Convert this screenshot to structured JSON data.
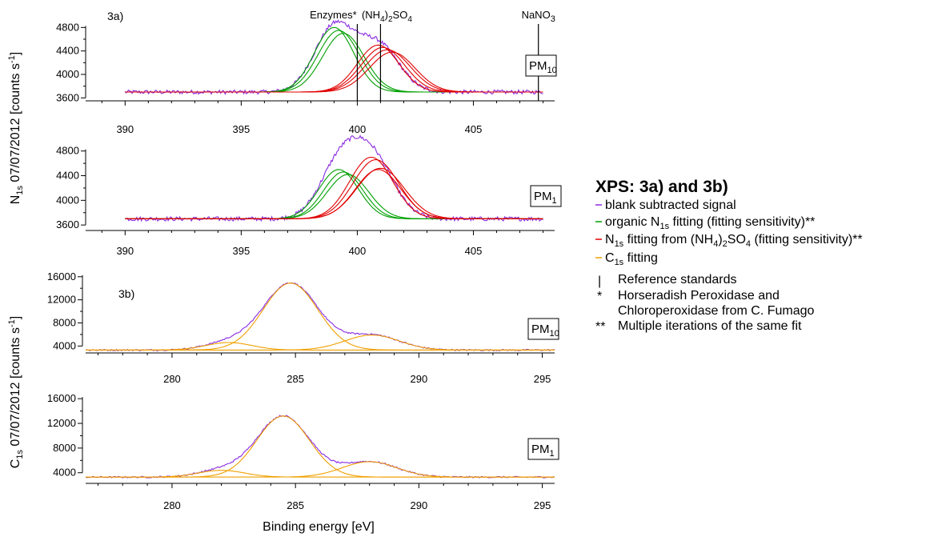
{
  "colors": {
    "signal": "#8a2be2",
    "organic": "#00a000",
    "sulfate": "#e00000",
    "c1s": "#f0a000",
    "axis": "#000000"
  },
  "figure": {
    "ylabel_top": "N1s 07/07/2012 [counts s-1]",
    "ylabel_bottom": "C1s 07/07/2012 [counts s-1]",
    "xlabel": "Binding energy [eV]"
  },
  "legend": {
    "title": "XPS: 3a) and 3b)",
    "items": [
      {
        "key": "signal",
        "marker": "line",
        "text": "blank subtracted signal"
      },
      {
        "key": "organic",
        "marker": "line",
        "text": "organic N1s fitting (fitting sensitivity)**"
      },
      {
        "key": "sulfate",
        "marker": "line",
        "text": "N1s fitting from (NH4)2SO4 (fitting sensitivity)**"
      },
      {
        "key": "c1s",
        "marker": "line",
        "text": "C1s fitting"
      },
      {
        "key": "axis",
        "marker": "|",
        "text": "Reference standards"
      },
      {
        "key": "axis",
        "marker": "*",
        "text": "Horseradish Peroxidase and"
      },
      {
        "key": "axis",
        "marker": "",
        "text": "Chloroperoxidase from C. Fumago"
      },
      {
        "key": "axis",
        "marker": "**",
        "text": "Multiple iterations of the same fit"
      }
    ]
  },
  "chart_data": [
    {
      "type": "line",
      "panel_label": "3a)",
      "box_label": "PM10",
      "xlim": [
        388.3,
        408.5
      ],
      "ylim": [
        3550,
        4900
      ],
      "xticks": [
        390,
        395,
        400,
        405
      ],
      "yticks": [
        3600,
        4000,
        4400,
        4800
      ],
      "reference_lines": [
        {
          "x": 400.0,
          "label": "Enzymes*"
        },
        {
          "x": 401.0,
          "label": "(NH4)2SO4"
        },
        {
          "x": 407.8,
          "label": "NaNO3"
        }
      ],
      "baseline": 3700,
      "signal": {
        "name": "blank subtracted signal",
        "x_range": [
          390,
          408
        ],
        "points": 360,
        "noise": 35
      },
      "fits": {
        "organic": [
          {
            "center": 399.0,
            "amplitude": 1100,
            "fwhm": 2.0
          },
          {
            "center": 399.2,
            "amplitude": 1050,
            "fwhm": 2.1
          },
          {
            "center": 399.4,
            "amplitude": 1000,
            "fwhm": 2.1
          }
        ],
        "sulfate": [
          {
            "center": 400.9,
            "amplitude": 800,
            "fwhm": 2.1
          },
          {
            "center": 401.1,
            "amplitude": 760,
            "fwhm": 2.2
          },
          {
            "center": 401.3,
            "amplitude": 720,
            "fwhm": 2.3
          },
          {
            "center": 401.5,
            "amplitude": 680,
            "fwhm": 2.3
          }
        ]
      }
    },
    {
      "type": "line",
      "panel_label": "",
      "box_label": "PM1",
      "xlim": [
        388.3,
        408.5
      ],
      "ylim": [
        3550,
        4900
      ],
      "xticks": [
        390,
        395,
        400,
        405
      ],
      "yticks": [
        3600,
        4000,
        4400,
        4800
      ],
      "reference_lines": [],
      "baseline": 3700,
      "signal": {
        "name": "blank subtracted signal",
        "x_range": [
          390,
          408
        ],
        "points": 360,
        "noise": 35
      },
      "fits": {
        "organic": [
          {
            "center": 399.2,
            "amplitude": 800,
            "fwhm": 2.0
          },
          {
            "center": 399.4,
            "amplitude": 760,
            "fwhm": 2.0
          },
          {
            "center": 399.6,
            "amplitude": 720,
            "fwhm": 2.1
          }
        ],
        "sulfate": [
          {
            "center": 400.6,
            "amplitude": 1000,
            "fwhm": 2.2
          },
          {
            "center": 400.8,
            "amplitude": 960,
            "fwhm": 2.3
          },
          {
            "center": 401.0,
            "amplitude": 820,
            "fwhm": 2.4
          },
          {
            "center": 400.9,
            "amplitude": 800,
            "fwhm": 2.3
          }
        ]
      }
    },
    {
      "type": "line",
      "panel_label": "3b)",
      "box_label": "PM10",
      "xlim": [
        276.5,
        295.5
      ],
      "ylim": [
        2800,
        16800
      ],
      "xticks": [
        280,
        285,
        290,
        295
      ],
      "yticks": [
        4000,
        8000,
        12000,
        16000
      ],
      "reference_lines": [],
      "baseline": 3300,
      "signal": {
        "name": "blank subtracted signal",
        "x_range": [
          276.5,
          295.5
        ],
        "points": 380,
        "noise": 120
      },
      "fits": {
        "c1s": [
          {
            "center": 284.8,
            "amplitude": 11600,
            "fwhm": 2.6
          },
          {
            "center": 288.1,
            "amplitude": 2600,
            "fwhm": 2.6
          },
          {
            "center": 282.3,
            "amplitude": 1300,
            "fwhm": 2.2
          }
        ]
      }
    },
    {
      "type": "line",
      "panel_label": "",
      "box_label": "PM1",
      "xlim": [
        276.5,
        295.5
      ],
      "ylim": [
        2800,
        16800
      ],
      "xticks": [
        280,
        285,
        290,
        295
      ],
      "yticks": [
        4000,
        8000,
        12000,
        16000
      ],
      "reference_lines": [],
      "baseline": 3300,
      "signal": {
        "name": "blank subtracted signal",
        "x_range": [
          276.5,
          295.5
        ],
        "points": 380,
        "noise": 120
      },
      "fits": {
        "c1s": [
          {
            "center": 284.5,
            "amplitude": 9900,
            "fwhm": 2.5
          },
          {
            "center": 288.0,
            "amplitude": 2500,
            "fwhm": 2.6
          },
          {
            "center": 282.0,
            "amplitude": 1100,
            "fwhm": 2.2
          }
        ]
      }
    }
  ]
}
